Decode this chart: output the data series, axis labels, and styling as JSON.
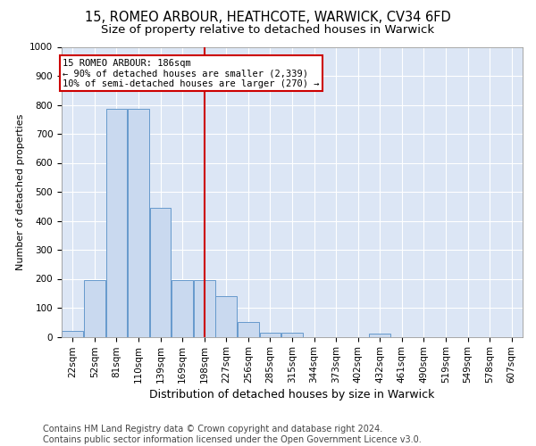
{
  "title1": "15, ROMEO ARBOUR, HEATHCOTE, WARWICK, CV34 6FD",
  "title2": "Size of property relative to detached houses in Warwick",
  "xlabel": "Distribution of detached houses by size in Warwick",
  "ylabel": "Number of detached properties",
  "footnote": "Contains HM Land Registry data © Crown copyright and database right 2024.\nContains public sector information licensed under the Open Government Licence v3.0.",
  "bin_labels": [
    "22sqm",
    "52sqm",
    "81sqm",
    "110sqm",
    "139sqm",
    "169sqm",
    "198sqm",
    "227sqm",
    "256sqm",
    "285sqm",
    "315sqm",
    "344sqm",
    "373sqm",
    "402sqm",
    "432sqm",
    "461sqm",
    "490sqm",
    "519sqm",
    "549sqm",
    "578sqm",
    "607sqm"
  ],
  "bar_values": [
    20,
    195,
    785,
    785,
    445,
    195,
    195,
    140,
    50,
    15,
    15,
    0,
    0,
    0,
    10,
    0,
    0,
    0,
    0,
    0,
    0
  ],
  "bar_color": "#c9d9ef",
  "bar_edge_color": "#6699cc",
  "vline_index": 6,
  "vline_color": "#cc0000",
  "annotation_text": "15 ROMEO ARBOUR: 186sqm\n← 90% of detached houses are smaller (2,339)\n10% of semi-detached houses are larger (270) →",
  "annotation_box_color": "#cc0000",
  "ylim": [
    0,
    1000
  ],
  "yticks": [
    0,
    100,
    200,
    300,
    400,
    500,
    600,
    700,
    800,
    900,
    1000
  ],
  "background_color": "#dce6f5",
  "grid_color": "#ffffff",
  "fig_bg": "#ffffff",
  "title1_fontsize": 10.5,
  "title2_fontsize": 9.5,
  "xlabel_fontsize": 9,
  "ylabel_fontsize": 8,
  "tick_fontsize": 7.5,
  "annotation_fontsize": 7.5,
  "footnote_fontsize": 7
}
